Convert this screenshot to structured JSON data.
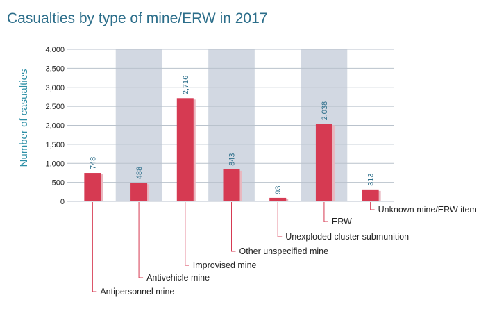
{
  "chart_data": {
    "type": "bar",
    "title": "Casualties by type of mine/ERW in 2017",
    "ylabel": "Number of casualties",
    "xlabel": "",
    "ylim": [
      0,
      4000
    ],
    "yticks": [
      "0",
      "500",
      "1,000",
      "1,500",
      "2,000",
      "2,500",
      "3,000",
      "3,500",
      "4,000"
    ],
    "ytick_values": [
      0,
      500,
      1000,
      1500,
      2000,
      2500,
      3000,
      3500,
      4000
    ],
    "grid": true,
    "categories": [
      "Antipersonnel mine",
      "Antivehicle mine",
      "Improvised mine",
      "Other unspecified mine",
      "Unexploded cluster submunition",
      "ERW",
      "Unknown mine/ERW item"
    ],
    "values": [
      748,
      488,
      2716,
      843,
      93,
      2038,
      313
    ],
    "value_labels": [
      "748",
      "488",
      "2,716",
      "843",
      "93",
      "2,038",
      "313"
    ],
    "colors": {
      "bar": "#d63a52",
      "bar_shadow": "#e9b7bf",
      "band": "#d2d8e2",
      "grid": "#b9c2cc",
      "title": "#2c6e8a",
      "ylabel": "#2c8fa6",
      "leader": "#d63a52"
    }
  }
}
